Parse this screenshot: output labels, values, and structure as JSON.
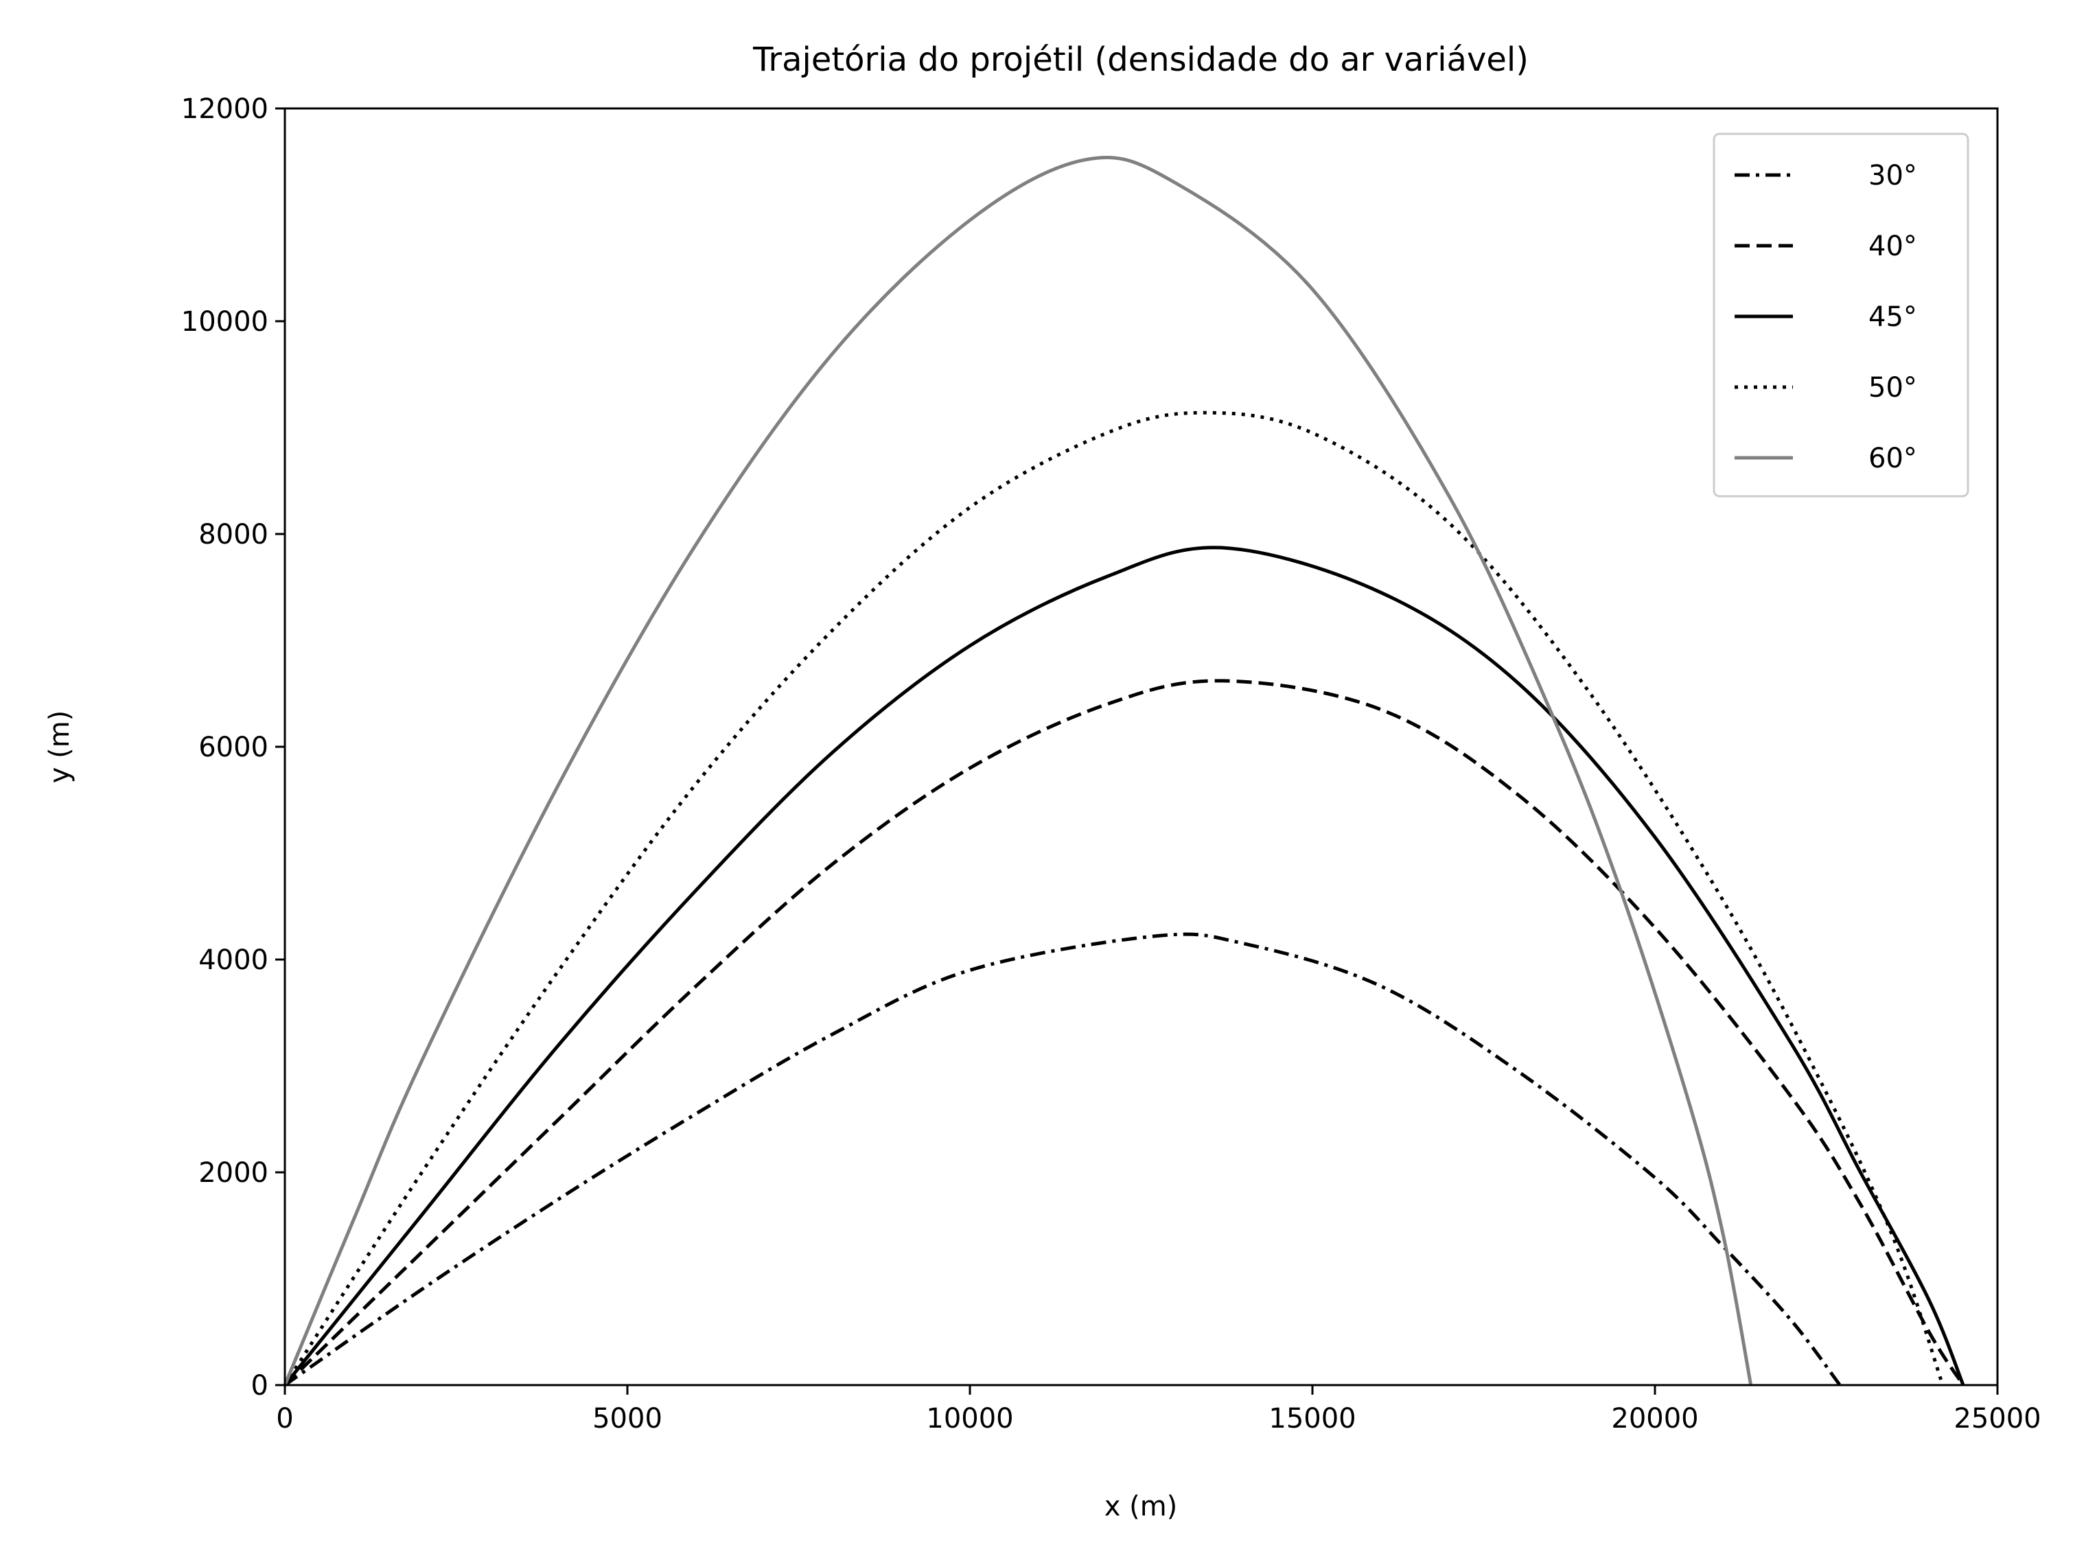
{
  "chart_data": {
    "type": "line",
    "title": "Trajetória do projétil (densidade do ar variável)",
    "xlabel": "x (m)",
    "ylabel": "y (m)",
    "xlim": [
      0,
      25000
    ],
    "ylim": [
      0,
      12000
    ],
    "xticks": [
      0,
      5000,
      10000,
      15000,
      20000,
      25000
    ],
    "yticks": [
      0,
      2000,
      4000,
      6000,
      8000,
      10000,
      12000
    ],
    "xtick_labels": [
      "0",
      "5000",
      "10000",
      "15000",
      "20000",
      "25000"
    ],
    "ytick_labels": [
      "0",
      "2000",
      "4000",
      "6000",
      "8000",
      "10000",
      "12000"
    ],
    "grid": false,
    "legend_position": "top-right",
    "series": [
      {
        "name": "30°",
        "color": "#000000",
        "style": "dashdot",
        "x": [
          0,
          2000,
          4000,
          6000,
          8000,
          10000,
          12700,
          14000,
          16000,
          18000,
          20000,
          21000,
          22000,
          22700
        ],
        "y": [
          0,
          900,
          1750,
          2550,
          3300,
          3900,
          4220,
          4150,
          3750,
          2950,
          1950,
          1300,
          600,
          0
        ]
      },
      {
        "name": "40°",
        "color": "#000000",
        "style": "dashed",
        "x": [
          0,
          2000,
          4000,
          6000,
          8000,
          10000,
          12000,
          13700,
          16000,
          18000,
          20000,
          22000,
          23000,
          24000,
          24500
        ],
        "y": [
          0,
          1250,
          2500,
          3750,
          4900,
          5800,
          6400,
          6620,
          6350,
          5550,
          4300,
          2700,
          1700,
          500,
          0
        ]
      },
      {
        "name": "45°",
        "color": "#000000",
        "style": "solid",
        "x": [
          0,
          2000,
          4000,
          6000,
          8000,
          10000,
          12000,
          13700,
          16000,
          18000,
          20000,
          22000,
          23000,
          24000,
          24500
        ],
        "y": [
          0,
          1600,
          3200,
          4650,
          5950,
          6950,
          7600,
          7870,
          7450,
          6600,
          5150,
          3200,
          2000,
          800,
          0
        ]
      },
      {
        "name": "50°",
        "color": "#000000",
        "style": "dotted",
        "x": [
          0,
          2000,
          4000,
          6000,
          8000,
          10000,
          12000,
          13400,
          15000,
          17000,
          19000,
          21000,
          22500,
          23500,
          24200
        ],
        "y": [
          0,
          2000,
          3900,
          5650,
          7100,
          8250,
          8950,
          9140,
          8950,
          8100,
          6550,
          4550,
          2750,
          1350,
          0
        ]
      },
      {
        "name": "60°",
        "color": "#808080",
        "style": "solid",
        "x": [
          0,
          1000,
          2000,
          4000,
          6000,
          8000,
          10000,
          11700,
          13000,
          15000,
          17000,
          18500,
          19500,
          20500,
          21000,
          21400
        ],
        "y": [
          0,
          1550,
          3050,
          5650,
          7900,
          9700,
          10950,
          11520,
          11300,
          10300,
          8350,
          6300,
          4650,
          2650,
          1400,
          0
        ]
      }
    ]
  }
}
